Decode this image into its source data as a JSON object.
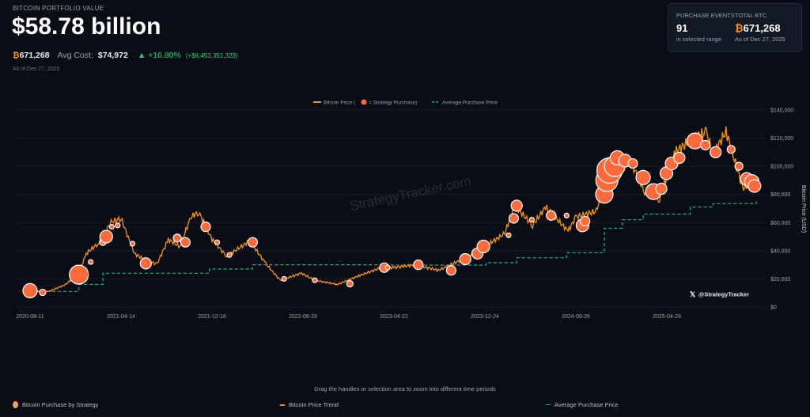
{
  "header": {
    "label": "BITCOIN PORTFOLIO VALUE",
    "value": "$58.78 billion",
    "btc_symbol": "₿",
    "btc_amount": "671,268",
    "avg_cost_label": "Avg Cost:",
    "avg_cost": "$74,972",
    "change_pct": "▲ +16.80%",
    "change_usd": "(+$8,453,351,323)",
    "as_of": "As of Dec 27, 2025"
  },
  "card": {
    "events_label": "PURCHASE EVENTS",
    "events_value": "91",
    "events_sub": "in selected range",
    "btc_label": "TOTAL BTC",
    "btc_value": "671,268",
    "btc_sub": "As of Dec 27, 2025"
  },
  "colors": {
    "price": "#f7931a",
    "bubble": "#ff6a3d",
    "avg": "#1fb58a",
    "accent": "#3b82f6"
  },
  "watermark": "StrategyTracker.com",
  "handle": "@StrategyTracker",
  "navigator_hint": "Drag the handles or selection area to zoom into different time periods",
  "bottom_legend": [
    "Bitcoin Purchase by Strategy",
    "Bitcoin Price Trend",
    "Average Purchase Price"
  ],
  "chart_data": {
    "type": "line",
    "legend": {
      "price": "Bitcoin Price (",
      "purchase": "= Strategy Purchase)",
      "avg": "Average Purchase Price"
    },
    "ylabel": "Bitcoin Price (USD)",
    "ylim": [
      0,
      140000
    ],
    "yticks": [
      "$0",
      "$20,000",
      "$40,000",
      "$60,000",
      "$80,000",
      "$100,000",
      "$120,000",
      "$140,000"
    ],
    "xticks": [
      "2020-08-11",
      "2021-04-14",
      "2021-12-16",
      "2022-08-19",
      "2023-04-22",
      "2023-12-24",
      "2024-08-26",
      "2025-04-29"
    ],
    "price": [
      [
        "2020-08-11",
        11500
      ],
      [
        "2020-10-01",
        11000
      ],
      [
        "2020-11-15",
        16000
      ],
      [
        "2020-12-20",
        23500
      ],
      [
        "2021-01-10",
        38000
      ],
      [
        "2021-02-10",
        45000
      ],
      [
        "2021-02-25",
        48000
      ],
      [
        "2021-03-15",
        60000
      ],
      [
        "2021-04-14",
        63000
      ],
      [
        "2021-05-20",
        38000
      ],
      [
        "2021-06-20",
        33000
      ],
      [
        "2021-07-20",
        30500
      ],
      [
        "2021-08-20",
        48000
      ],
      [
        "2021-09-20",
        43000
      ],
      [
        "2021-10-20",
        64000
      ],
      [
        "2021-11-10",
        67500
      ],
      [
        "2021-12-16",
        48000
      ],
      [
        "2022-01-25",
        36000
      ],
      [
        "2022-03-28",
        47000
      ],
      [
        "2022-05-10",
        31000
      ],
      [
        "2022-06-18",
        19000
      ],
      [
        "2022-08-15",
        24000
      ],
      [
        "2022-09-20",
        19000
      ],
      [
        "2022-11-20",
        16000
      ],
      [
        "2023-01-20",
        22500
      ],
      [
        "2023-03-20",
        28000
      ],
      [
        "2023-04-22",
        28000
      ],
      [
        "2023-06-20",
        30000
      ],
      [
        "2023-08-20",
        26000
      ],
      [
        "2023-10-25",
        34000
      ],
      [
        "2023-12-24",
        43000
      ],
      [
        "2024-02-15",
        52000
      ],
      [
        "2024-03-14",
        72000
      ],
      [
        "2024-05-01",
        58000
      ],
      [
        "2024-06-05",
        71000
      ],
      [
        "2024-08-05",
        54000
      ],
      [
        "2024-08-26",
        64000
      ],
      [
        "2024-10-20",
        68000
      ],
      [
        "2024-11-20",
        95000
      ],
      [
        "2024-12-17",
        106000
      ],
      [
        "2025-01-20",
        104000
      ],
      [
        "2025-02-28",
        82000
      ],
      [
        "2025-04-09",
        77000
      ],
      [
        "2025-05-22",
        110000
      ],
      [
        "2025-07-14",
        121000
      ],
      [
        "2025-08-14",
        124000
      ],
      [
        "2025-09-01",
        108000
      ],
      [
        "2025-10-06",
        125000
      ],
      [
        "2025-11-20",
        85000
      ],
      [
        "2025-12-27",
        87000
      ]
    ],
    "avg_cost": [
      [
        "2020-08-11",
        11100
      ],
      [
        "2020-12-21",
        16000
      ],
      [
        "2021-02-24",
        24000
      ],
      [
        "2021-12-09",
        27000
      ],
      [
        "2022-04-05",
        30000
      ],
      [
        "2023-04-05",
        29800
      ],
      [
        "2023-12-27",
        31500
      ],
      [
        "2024-03-19",
        35000
      ],
      [
        "2024-08-01",
        38500
      ],
      [
        "2024-11-11",
        56000
      ],
      [
        "2024-12-30",
        62000
      ],
      [
        "2025-02-24",
        66000
      ],
      [
        "2025-07-01",
        71000
      ],
      [
        "2025-09-01",
        73500
      ],
      [
        "2025-12-27",
        75000
      ]
    ],
    "purchases": [
      [
        "2020-08-11",
        11600,
        9
      ],
      [
        "2020-09-14",
        10400,
        4
      ],
      [
        "2020-12-21",
        23000,
        12
      ],
      [
        "2021-01-22",
        32000,
        3
      ],
      [
        "2021-02-24",
        46000,
        4
      ],
      [
        "2021-03-05",
        50000,
        8
      ],
      [
        "2021-03-20",
        57000,
        3
      ],
      [
        "2021-04-05",
        58000,
        3
      ],
      [
        "2021-05-15",
        45000,
        3
      ],
      [
        "2021-06-20",
        31000,
        7
      ],
      [
        "2021-09-13",
        49000,
        5
      ],
      [
        "2021-10-05",
        46000,
        6
      ],
      [
        "2021-11-29",
        57000,
        6
      ],
      [
        "2021-12-30",
        46000,
        3
      ],
      [
        "2022-02-01",
        37000,
        3
      ],
      [
        "2022-04-05",
        46000,
        6
      ],
      [
        "2022-06-29",
        20000,
        3
      ],
      [
        "2022-09-20",
        19000,
        3
      ],
      [
        "2022-12-24",
        16500,
        4
      ],
      [
        "2023-03-27",
        28000,
        6
      ],
      [
        "2023-04-05",
        28000,
        3
      ],
      [
        "2023-06-27",
        30000,
        6
      ],
      [
        "2023-09-24",
        26000,
        6
      ],
      [
        "2023-11-01",
        34000,
        7
      ],
      [
        "2023-12-04",
        38000,
        7
      ],
      [
        "2023-12-20",
        43000,
        8
      ],
      [
        "2024-02-26",
        51000,
        3
      ],
      [
        "2024-03-11",
        63000,
        6
      ],
      [
        "2024-03-19",
        72000,
        7
      ],
      [
        "2024-04-29",
        62000,
        3
      ],
      [
        "2024-06-20",
        65000,
        6
      ],
      [
        "2024-08-01",
        65000,
        3
      ],
      [
        "2024-09-13",
        58000,
        8
      ],
      [
        "2024-09-20",
        61000,
        6
      ],
      [
        "2024-11-11",
        80000,
        11
      ],
      [
        "2024-11-18",
        90000,
        14
      ],
      [
        "2024-11-25",
        97000,
        16
      ],
      [
        "2024-12-09",
        100000,
        13
      ],
      [
        "2024-12-16",
        106000,
        9
      ],
      [
        "2025-01-06",
        104000,
        8
      ],
      [
        "2025-01-27",
        102000,
        6
      ],
      [
        "2025-02-24",
        92000,
        9
      ],
      [
        "2025-03-24",
        82000,
        10
      ],
      [
        "2025-04-14",
        84000,
        7
      ],
      [
        "2025-04-28",
        95000,
        8
      ],
      [
        "2025-05-12",
        102000,
        8
      ],
      [
        "2025-06-02",
        106000,
        7
      ],
      [
        "2025-07-14",
        118000,
        10
      ],
      [
        "2025-08-11",
        115000,
        6
      ],
      [
        "2025-09-08",
        110000,
        7
      ],
      [
        "2025-10-20",
        112000,
        5
      ],
      [
        "2025-11-10",
        100000,
        5
      ],
      [
        "2025-12-01",
        91000,
        8
      ],
      [
        "2025-12-15",
        89000,
        9
      ],
      [
        "2025-12-22",
        86000,
        8
      ]
    ]
  }
}
